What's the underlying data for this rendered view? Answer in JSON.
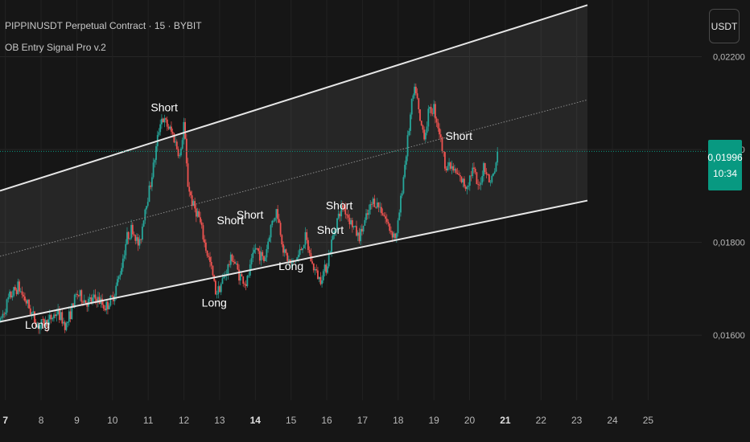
{
  "header": {
    "symbol_line": "PIPPINUSDT Perpetual Contract · 15 · BYBIT",
    "indicator_line": "OB Entry Signal Pro v.2"
  },
  "toolbar": {
    "currency_label": "USDT"
  },
  "last_price": {
    "price": "0,01996",
    "countdown": "10:34"
  },
  "colors": {
    "background": "#161616",
    "up": "#26a69a",
    "down": "#ef5350",
    "channel": "#e6e6e6",
    "last_price_line": "#089981"
  },
  "chart_data": {
    "type": "candlestick",
    "title": "PIPPINUSDT Perpetual Contract · 15 · BYBIT",
    "indicator": "OB Entry Signal Pro v.2",
    "x_tick_labels": [
      "7",
      "8",
      "9",
      "10",
      "11",
      "12",
      "13",
      "14",
      "15",
      "16",
      "17",
      "18",
      "19",
      "20",
      "21",
      "22",
      "23",
      "24",
      "25"
    ],
    "x_tick_days": [
      7,
      8,
      9,
      10,
      11,
      12,
      13,
      14,
      15,
      16,
      17,
      18,
      19,
      20,
      21,
      22,
      23,
      24,
      25
    ],
    "bold_tick_labels": [
      "7",
      "14",
      "21"
    ],
    "xlim": [
      6.85,
      26.5
    ],
    "y_tick_labels": [
      "0,01600",
      "0,01800",
      "0,02000",
      "0,02200"
    ],
    "y_tick_values": [
      0.016,
      0.018,
      0.02,
      0.022
    ],
    "ylim": [
      0.0146,
      0.02322
    ],
    "last_price": 0.01996,
    "price_path": [
      [
        6.85,
        0.01629
      ],
      [
        7.1,
        0.0168
      ],
      [
        7.35,
        0.01705
      ],
      [
        7.6,
        0.0167
      ],
      [
        7.9,
        0.0162
      ],
      [
        8.2,
        0.0163
      ],
      [
        8.45,
        0.0165
      ],
      [
        8.7,
        0.0162
      ],
      [
        9.0,
        0.0169
      ],
      [
        9.3,
        0.0167
      ],
      [
        9.55,
        0.0168
      ],
      [
        9.8,
        0.0166
      ],
      [
        10.0,
        0.0168
      ],
      [
        10.2,
        0.0173
      ],
      [
        10.4,
        0.0181
      ],
      [
        10.55,
        0.0183
      ],
      [
        10.75,
        0.0179
      ],
      [
        10.9,
        0.0187
      ],
      [
        11.05,
        0.0192
      ],
      [
        11.2,
        0.0199
      ],
      [
        11.35,
        0.0207
      ],
      [
        11.55,
        0.0205
      ],
      [
        11.7,
        0.0203
      ],
      [
        11.9,
        0.0198
      ],
      [
        12.0,
        0.0206
      ],
      [
        12.1,
        0.0193
      ],
      [
        12.25,
        0.0188
      ],
      [
        12.4,
        0.0186
      ],
      [
        12.6,
        0.0179
      ],
      [
        12.75,
        0.0175
      ],
      [
        12.9,
        0.0169
      ],
      [
        13.1,
        0.0172
      ],
      [
        13.35,
        0.0177
      ],
      [
        13.55,
        0.0173
      ],
      [
        13.75,
        0.0171
      ],
      [
        14.0,
        0.0179
      ],
      [
        14.25,
        0.0176
      ],
      [
        14.45,
        0.0184
      ],
      [
        14.6,
        0.0187
      ],
      [
        14.8,
        0.0178
      ],
      [
        15.0,
        0.0175
      ],
      [
        15.2,
        0.0177
      ],
      [
        15.4,
        0.0181
      ],
      [
        15.6,
        0.0175
      ],
      [
        15.8,
        0.0172
      ],
      [
        16.0,
        0.0175
      ],
      [
        16.25,
        0.0184
      ],
      [
        16.45,
        0.0188
      ],
      [
        16.7,
        0.0184
      ],
      [
        16.9,
        0.0181
      ],
      [
        17.1,
        0.0185
      ],
      [
        17.3,
        0.0189
      ],
      [
        17.55,
        0.0187
      ],
      [
        17.75,
        0.0183
      ],
      [
        17.95,
        0.0181
      ],
      [
        18.1,
        0.0191
      ],
      [
        18.25,
        0.0201
      ],
      [
        18.4,
        0.0211
      ],
      [
        18.5,
        0.0213
      ],
      [
        18.6,
        0.0206
      ],
      [
        18.75,
        0.0203
      ],
      [
        18.85,
        0.0208
      ],
      [
        19.0,
        0.0209
      ],
      [
        19.15,
        0.0204
      ],
      [
        19.3,
        0.0197
      ],
      [
        19.5,
        0.0196
      ],
      [
        19.7,
        0.0194
      ],
      [
        19.9,
        0.0192
      ],
      [
        20.1,
        0.0196
      ],
      [
        20.25,
        0.0191
      ],
      [
        20.4,
        0.0197
      ],
      [
        20.55,
        0.0193
      ],
      [
        20.7,
        0.0195
      ],
      [
        20.78,
        0.01996
      ]
    ],
    "channel": {
      "upper": {
        "x": [
          6.85,
          23.3
        ],
        "y": [
          0.01911,
          0.02311
        ]
      },
      "mid": {
        "x": [
          6.85,
          23.3
        ],
        "y": [
          0.0177,
          0.02107
        ]
      },
      "lower": {
        "x": [
          6.85,
          23.3
        ],
        "y": [
          0.01629,
          0.0189
        ]
      }
    },
    "signals": [
      {
        "label": "Short",
        "x": 11.45,
        "y": 0.02082
      },
      {
        "label": "Short",
        "x": 13.3,
        "y": 0.01839
      },
      {
        "label": "Short",
        "x": 13.85,
        "y": 0.01851
      },
      {
        "label": "Short",
        "x": 16.35,
        "y": 0.01871
      },
      {
        "label": "Short",
        "x": 16.1,
        "y": 0.01818
      },
      {
        "label": "Short",
        "x": 19.7,
        "y": 0.02021
      },
      {
        "label": "Long",
        "x": 7.9,
        "y": 0.01614
      },
      {
        "label": "Long",
        "x": 12.85,
        "y": 0.01662
      },
      {
        "label": "Long",
        "x": 15.0,
        "y": 0.0174
      }
    ]
  }
}
